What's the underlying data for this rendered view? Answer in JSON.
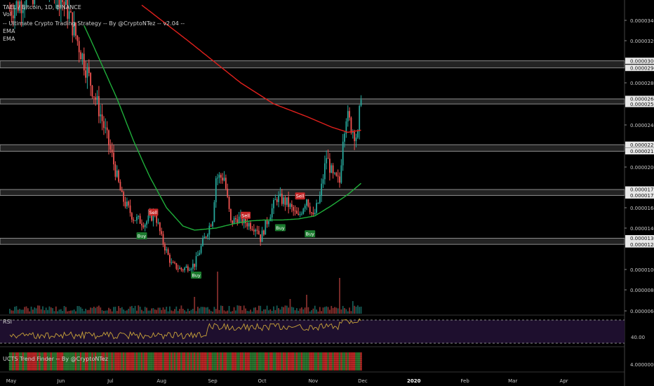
{
  "legend": {
    "symbol": "TAEL / Bitcoin, 1D, BINANCE",
    "vol": "Vol",
    "strategy": "-- Ultimate Crypto Trading Strategy -- By @CryptoNTez -- v2.04 --",
    "ema1": "EMA",
    "ema2": "EMA"
  },
  "rsi_pane": {
    "title": "RSI",
    "axis_label": "40.00"
  },
  "trend_pane": {
    "title": "UCTS Trend Finder -- By @CryptoNTez",
    "axis_label": "4.00000000"
  },
  "colors": {
    "up": "#26a69a",
    "down": "#ef5350",
    "ema_fast": "#1fae3a",
    "ema_slow": "#e0201c",
    "band": "#8c8c8c",
    "buy": "#1b7a2e",
    "sell": "#c62828",
    "rsi_line": "#c8a23a",
    "rsi_bg": "#1e0f2e"
  },
  "chart_data": {
    "type": "candlestick",
    "title": "TAEL / Bitcoin, 1D, BINANCE",
    "y_tick_labels": [
      "0.00003400",
      "0.00003200",
      "0.00002800",
      "0.00002400",
      "0.00002000",
      "0.00001600",
      "0.00001400",
      "0.00001000",
      "0.00000800",
      "0.00000600"
    ],
    "y_ticks": [
      3400,
      3200,
      2800,
      2400,
      2000,
      1600,
      1400,
      1000,
      800,
      600
    ],
    "price_unit_note": "",
    "x_labels": [
      "May",
      "Jun",
      "Jul",
      "Aug",
      "Sep",
      "Oct",
      "Nov",
      "Dec",
      "2020",
      "Feb",
      "Mar",
      "Apr"
    ],
    "x_label_day_index": [
      0,
      31,
      61,
      92,
      123,
      153,
      184,
      214,
      245,
      276,
      305,
      336
    ],
    "levels": [
      {
        "upper": "0.00003009",
        "lower": "0.00002942",
        "upper_v": 3009,
        "lower_v": 2942
      },
      {
        "upper": "0.00002647",
        "lower": "0.00002599",
        "upper_v": 2647,
        "lower_v": 2599
      },
      {
        "upper": "0.00002212",
        "lower": "0.00002150",
        "upper_v": 2212,
        "lower_v": 2150
      },
      {
        "upper": "0.00001779",
        "lower": "0.00001721",
        "upper_v": 1779,
        "lower_v": 1721
      },
      {
        "upper": "0.00001302",
        "lower": "0.00001243",
        "upper_v": 1302,
        "lower_v": 1243
      }
    ],
    "close_anchors": [
      [
        0,
        3500
      ],
      [
        25,
        3800
      ],
      [
        35,
        3500
      ],
      [
        45,
        3000
      ],
      [
        55,
        2500
      ],
      [
        62,
        2100
      ],
      [
        68,
        1700
      ],
      [
        75,
        1500
      ],
      [
        82,
        1450
      ],
      [
        88,
        1550
      ],
      [
        92,
        1300
      ],
      [
        98,
        1050
      ],
      [
        104,
        1000
      ],
      [
        112,
        1050
      ],
      [
        118,
        1300
      ],
      [
        123,
        1500
      ],
      [
        125,
        1900
      ],
      [
        130,
        1900
      ],
      [
        134,
        1450
      ],
      [
        138,
        1500
      ],
      [
        144,
        1450
      ],
      [
        150,
        1400
      ],
      [
        152,
        1300
      ],
      [
        158,
        1550
      ],
      [
        162,
        1700
      ],
      [
        168,
        1650
      ],
      [
        175,
        1500
      ],
      [
        180,
        1700
      ],
      [
        184,
        1500
      ],
      [
        188,
        1700
      ],
      [
        192,
        2100
      ],
      [
        196,
        1900
      ],
      [
        200,
        1850
      ],
      [
        202,
        2300
      ],
      [
        204,
        2500
      ],
      [
        208,
        2350
      ],
      [
        211,
        2280
      ],
      [
        213,
        2720
      ]
    ],
    "ema_fast": [
      [
        45,
        3350
      ],
      [
        55,
        3000
      ],
      [
        65,
        2650
      ],
      [
        75,
        2250
      ],
      [
        85,
        1900
      ],
      [
        95,
        1600
      ],
      [
        105,
        1420
      ],
      [
        112,
        1380
      ],
      [
        125,
        1400
      ],
      [
        135,
        1440
      ],
      [
        145,
        1470
      ],
      [
        155,
        1480
      ],
      [
        165,
        1480
      ],
      [
        175,
        1490
      ],
      [
        185,
        1520
      ],
      [
        195,
        1620
      ],
      [
        205,
        1730
      ],
      [
        213,
        1840
      ]
    ],
    "ema_slow": [
      [
        80,
        3550
      ],
      [
        100,
        3300
      ],
      [
        120,
        3050
      ],
      [
        140,
        2800
      ],
      [
        160,
        2600
      ],
      [
        180,
        2480
      ],
      [
        195,
        2380
      ],
      [
        205,
        2330
      ],
      [
        213,
        2350
      ]
    ],
    "signals": [
      {
        "label": "Buy",
        "day": 80,
        "anchor": 1400
      },
      {
        "label": "Sell",
        "day": 87,
        "anchor": 1480
      },
      {
        "label": "Buy",
        "day": 113,
        "anchor": 1020
      },
      {
        "label": "Sell",
        "day": 143,
        "anchor": 1450
      },
      {
        "label": "Buy",
        "day": 164,
        "anchor": 1480
      },
      {
        "label": "Sell",
        "day": 176,
        "anchor": 1640
      },
      {
        "label": "Buy",
        "day": 182,
        "anchor": 1420
      }
    ],
    "volume_spikes": [
      [
        126,
        1.0
      ],
      [
        200,
        0.85
      ],
      [
        112,
        0.4
      ],
      [
        170,
        0.35
      ],
      [
        208,
        0.3
      ],
      [
        180,
        0.45
      ]
    ]
  }
}
